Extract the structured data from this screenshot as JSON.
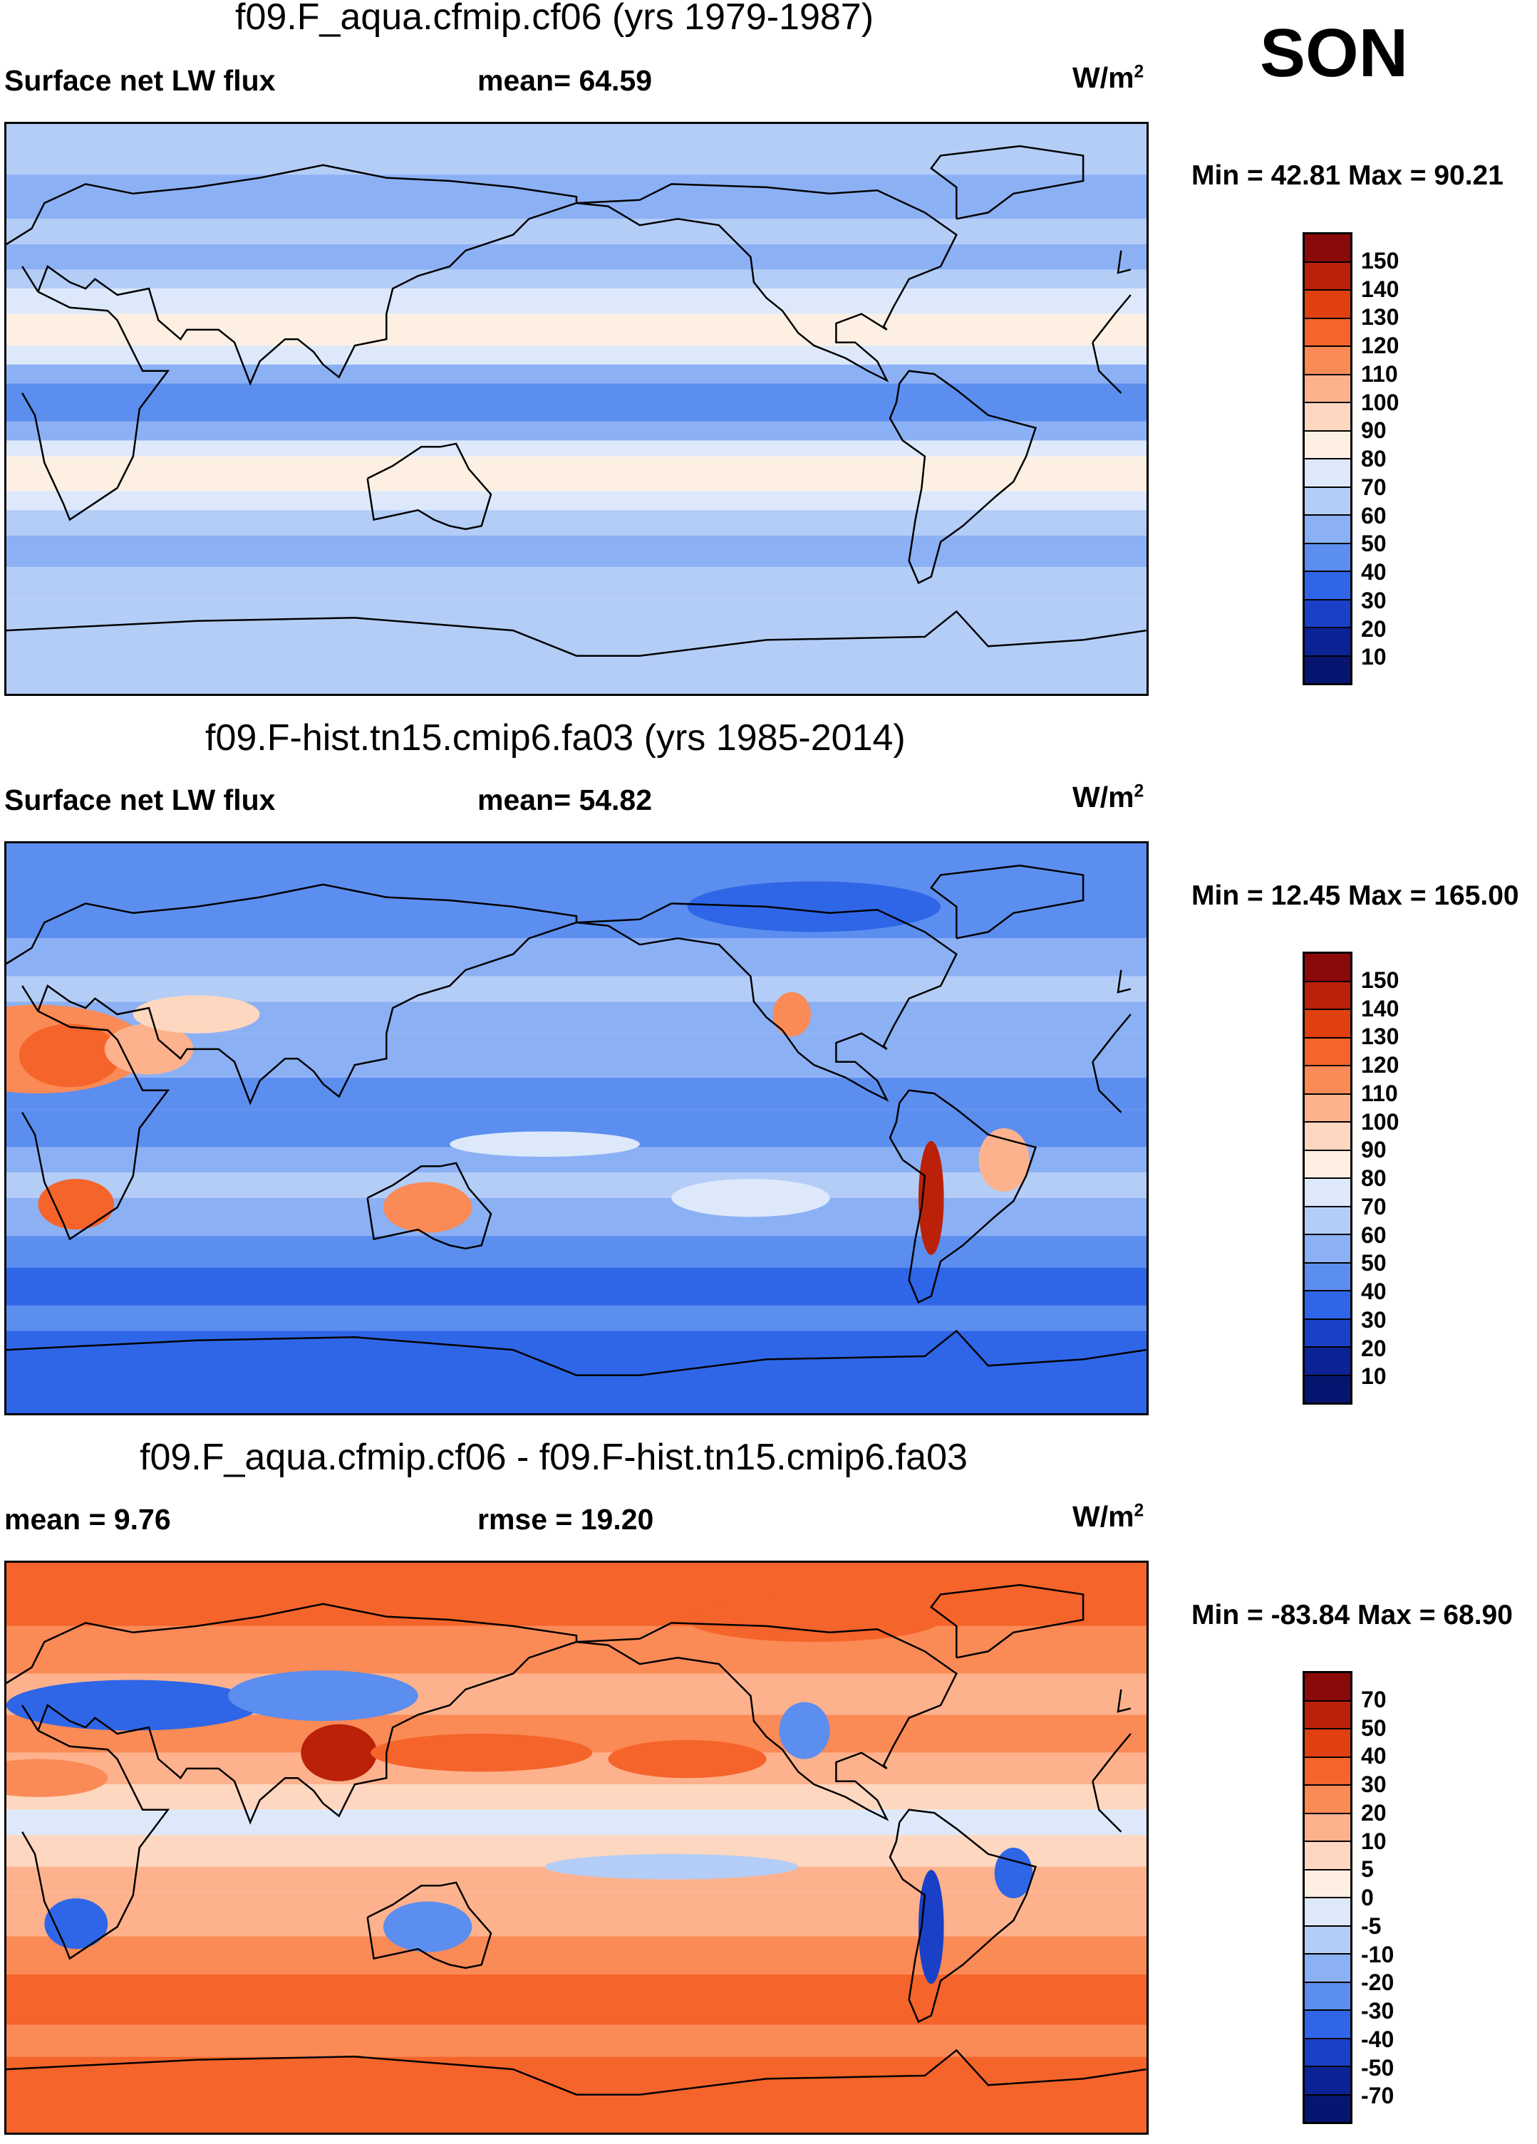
{
  "season": "SON",
  "panels": [
    {
      "title": "f09.F_aqua.cfmip.cf06 (yrs 1979-1987)",
      "left_label": "Surface net LW flux",
      "mid_label": "mean=  64.59",
      "units": "W/m",
      "minmax": "Min =  42.81 Max =  90.21",
      "colorbar_labels": [
        "150",
        "140",
        "130",
        "120",
        "110",
        "100",
        "90",
        "80",
        "70",
        "60",
        "50",
        "40",
        "30",
        "20",
        "10"
      ],
      "colorbar_colors": [
        "#8a0a0a",
        "#bb2008",
        "#e0400e",
        "#f5642a",
        "#fa8a56",
        "#fdb28d",
        "#fdd7bf",
        "#fdf0e3",
        "#dde9fb",
        "#b3cdf7",
        "#8cb0f4",
        "#5c8eef",
        "#2f66e8",
        "#1a40c8",
        "#0c2396",
        "#071570"
      ],
      "field_kind": "control",
      "chart_data": {
        "type": "heatmap",
        "title": "f09.F_aqua.cfmip.cf06 (yrs 1979-1987)",
        "variable": "Surface net LW flux",
        "units": "W/m^2",
        "mean": 64.59,
        "min": 42.81,
        "max": 90.21,
        "levels": [
          10,
          20,
          30,
          40,
          50,
          60,
          70,
          80,
          90,
          100,
          110,
          120,
          130,
          140,
          150
        ]
      }
    },
    {
      "title": "f09.F-hist.tn15.cmip6.fa03 (yrs 1985-2014)",
      "left_label": "Surface net LW flux",
      "mid_label": "mean=  54.82",
      "units": "W/m",
      "minmax": "Min =  12.45 Max = 165.00",
      "colorbar_labels": [
        "150",
        "140",
        "130",
        "120",
        "110",
        "100",
        "90",
        "80",
        "70",
        "60",
        "50",
        "40",
        "30",
        "20",
        "10"
      ],
      "colorbar_colors": [
        "#8a0a0a",
        "#bb2008",
        "#e0400e",
        "#f5642a",
        "#fa8a56",
        "#fdb28d",
        "#fdd7bf",
        "#fdf0e3",
        "#dde9fb",
        "#b3cdf7",
        "#8cb0f4",
        "#5c8eef",
        "#2f66e8",
        "#1a40c8",
        "#0c2396",
        "#071570"
      ],
      "field_kind": "hist",
      "chart_data": {
        "type": "heatmap",
        "title": "f09.F-hist.tn15.cmip6.fa03 (yrs 1985-2014)",
        "variable": "Surface net LW flux",
        "units": "W/m^2",
        "mean": 54.82,
        "min": 12.45,
        "max": 165.0,
        "levels": [
          10,
          20,
          30,
          40,
          50,
          60,
          70,
          80,
          90,
          100,
          110,
          120,
          130,
          140,
          150
        ]
      }
    },
    {
      "title": "f09.F_aqua.cfmip.cf06 - f09.F-hist.tn15.cmip6.fa03",
      "left_label": "mean =   9.76",
      "mid_label": "rmse =  19.20",
      "units": "W/m",
      "minmax": "Min = -83.84 Max =  68.90",
      "colorbar_labels": [
        "70",
        "50",
        "40",
        "30",
        "20",
        "10",
        "5",
        "0",
        "-5",
        "-10",
        "-20",
        "-30",
        "-40",
        "-50",
        "-70"
      ],
      "colorbar_colors": [
        "#8a0a0a",
        "#bb2008",
        "#e0400e",
        "#f5642a",
        "#fa8a56",
        "#fdb28d",
        "#fdd7bf",
        "#fdf0e3",
        "#dde9fb",
        "#b3cdf7",
        "#8cb0f4",
        "#5c8eef",
        "#2f66e8",
        "#1a40c8",
        "#0c2396",
        "#071570"
      ],
      "field_kind": "diff",
      "chart_data": {
        "type": "heatmap",
        "title": "f09.F_aqua.cfmip.cf06 - f09.F-hist.tn15.cmip6.fa03",
        "units": "W/m^2",
        "mean": 9.76,
        "rmse": 19.2,
        "min": -83.84,
        "max": 68.9,
        "levels": [
          -70,
          -50,
          -40,
          -30,
          -20,
          -10,
          -5,
          0,
          5,
          10,
          20,
          30,
          40,
          50,
          70
        ]
      }
    }
  ]
}
